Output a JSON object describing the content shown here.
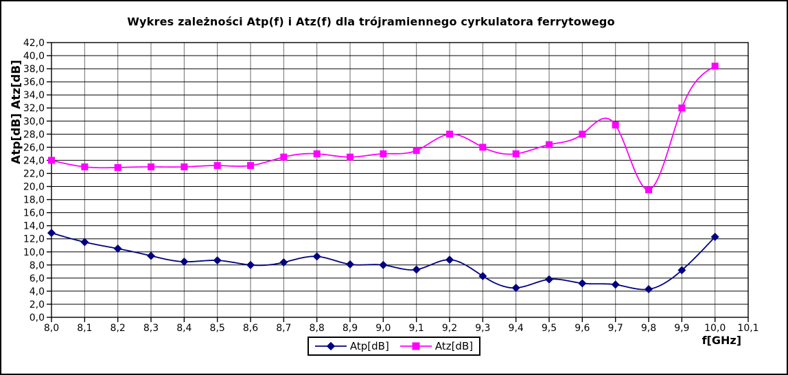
{
  "chart_data": {
    "type": "line",
    "title": "Wykres zależności Atp(f) i Atz(f) dla trójramiennego cyrkulatora ferrytowego",
    "xlabel": "f[GHz]",
    "ylabel": "Atp[dB] Atz[dB]",
    "x": [
      8.0,
      8.1,
      8.2,
      8.3,
      8.4,
      8.5,
      8.6,
      8.7,
      8.8,
      8.9,
      9.0,
      9.1,
      9.2,
      9.3,
      9.4,
      9.5,
      9.6,
      9.7,
      9.8,
      9.9,
      10.0
    ],
    "series": [
      {
        "name": "Atp[dB]",
        "color": "#000080",
        "marker": "diamond",
        "values": [
          12.9,
          11.5,
          10.5,
          9.4,
          8.5,
          8.7,
          8.0,
          8.4,
          9.3,
          8.1,
          8.0,
          7.3,
          8.8,
          6.3,
          4.5,
          5.8,
          5.2,
          5.0,
          4.3,
          7.2,
          12.3
        ]
      },
      {
        "name": "Atz[dB]",
        "color": "#FF00FF",
        "marker": "square",
        "values": [
          24.0,
          23.0,
          22.9,
          23.0,
          23.0,
          23.2,
          23.2,
          24.5,
          25.0,
          24.5,
          25.0,
          25.5,
          28.0,
          26.0,
          25.0,
          26.4,
          28.0,
          29.4,
          19.5,
          32.0,
          38.4
        ]
      }
    ],
    "xlim": [
      8.0,
      10.1
    ],
    "ylim": [
      0.0,
      42.0
    ],
    "x_tick_labels": [
      "8,0",
      "8,1",
      "8,2",
      "8,3",
      "8,4",
      "8,5",
      "8,6",
      "8,7",
      "8,8",
      "8,9",
      "9,0",
      "9,1",
      "9,2",
      "9,3",
      "9,4",
      "9,5",
      "9,6",
      "9,7",
      "9,8",
      "9,9",
      "10,0",
      "10,1"
    ],
    "y_tick_labels": [
      "0,0",
      "2,0",
      "4,0",
      "6,0",
      "8,0",
      "10,0",
      "12,0",
      "14,0",
      "16,0",
      "18,0",
      "20,0",
      "22,0",
      "24,0",
      "26,0",
      "28,0",
      "30,0",
      "32,0",
      "34,0",
      "36,0",
      "38,0",
      "40,0",
      "42,0"
    ],
    "grid": {
      "horizontal_color": "#000000",
      "vertical_color": "#6b6b6b",
      "visible": true
    },
    "axis_color": "#000000",
    "background_color": "#ffffff",
    "line_smoothing": "cubic-spline",
    "legend_position": "bottom-center"
  }
}
